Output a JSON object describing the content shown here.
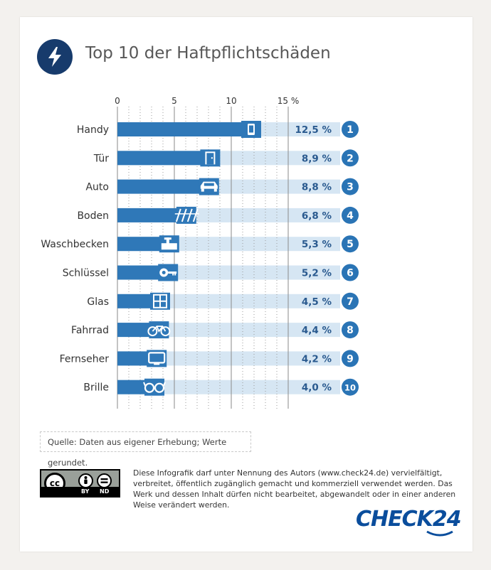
{
  "title": "Top 10 der Haftpflichtschäden",
  "source_note": "Quelle: Daten aus eigener Erhebung; Werte gerundet.",
  "license_text": "Diese Infografik darf unter Nennung des Autors (www.check24.de) vervielfältigt, verbreitet, öffentlich zugänglich gemacht und kommerziell verwendet werden. Das Werk und dessen Inhalt dürfen nicht bearbeitet, abgewandelt oder in einer anderen Weise verändert werden.",
  "cc_badge": {
    "cc": "cc",
    "by": "BY",
    "nd": "ND"
  },
  "logo_text": "CHECK24",
  "colors": {
    "navy": "#173b6c",
    "bar": "#2f78b8",
    "bar_bg": "#d6e6f3",
    "rank_circle": "#2a74b5",
    "value_text": "#2a5a8f"
  },
  "chart_data": {
    "type": "bar",
    "orientation": "horizontal",
    "categories": [
      "Handy",
      "Tür",
      "Auto",
      "Boden",
      "Waschbecken",
      "Schlüssel",
      "Glas",
      "Fahrrad",
      "Fernseher",
      "Brille"
    ],
    "values": [
      12.5,
      8.9,
      8.8,
      6.8,
      5.3,
      5.2,
      4.5,
      4.4,
      4.2,
      4.0
    ],
    "value_labels": [
      "12,5 %",
      "8,9 %",
      "8,8 %",
      "6,8 %",
      "5,3 %",
      "5,2 %",
      "4,5 %",
      "4,4 %",
      "4,2 %",
      "4,0 %"
    ],
    "ranks": [
      "1",
      "2",
      "3",
      "4",
      "5",
      "6",
      "7",
      "8",
      "9",
      "10"
    ],
    "icons": [
      "phone-icon",
      "door-icon",
      "car-icon",
      "floor-icon",
      "sink-icon",
      "key-icon",
      "window-icon",
      "bicycle-icon",
      "tv-icon",
      "glasses-icon"
    ],
    "x_ticks": [
      0,
      5,
      10,
      15
    ],
    "x_tick_labels": [
      "0",
      "5",
      "10",
      "15 %"
    ],
    "xlim": [
      0,
      15
    ],
    "minor_gridlines": true
  }
}
